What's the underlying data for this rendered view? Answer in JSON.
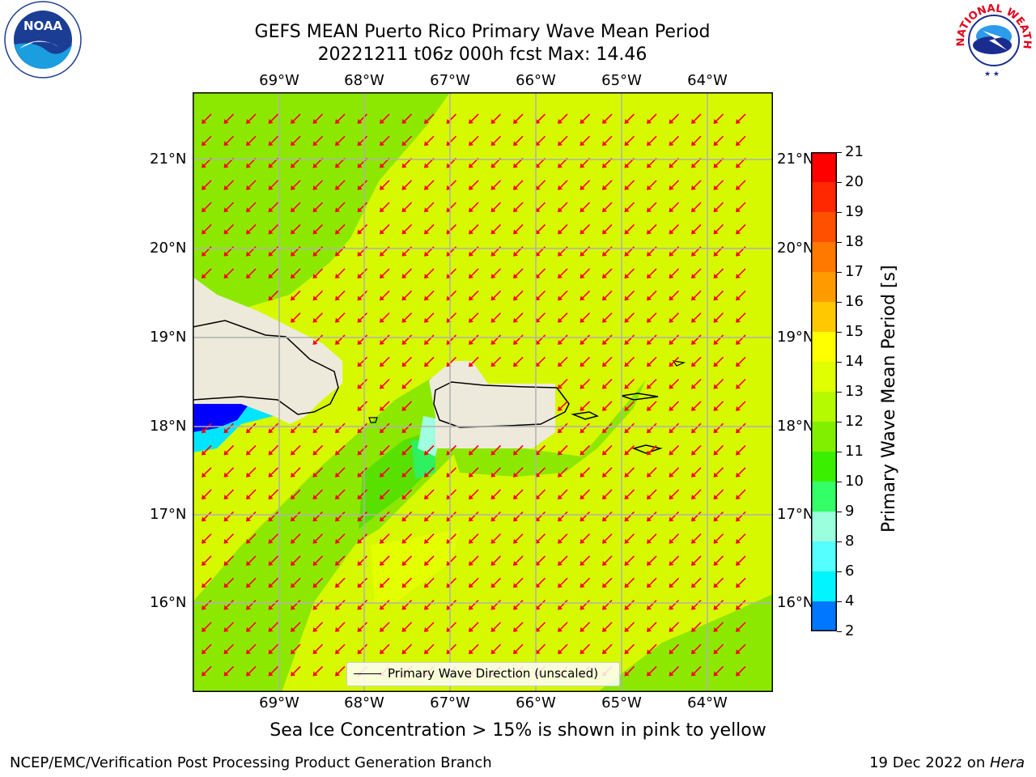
{
  "header": {
    "title_line1": "GEFS MEAN Puerto Rico Primary Wave Mean Period",
    "title_line2": "20221211 t06z 000h fcst   Max: 14.46"
  },
  "logos": {
    "left": "NOAA",
    "left_ring": "NATIONAL OCEANIC AND ATMOSPHERIC ADMINISTRATION · U.S. DEPARTMENT OF COMMERCE",
    "right_ring": "NATIONAL WEATHER SERVICE"
  },
  "map": {
    "lon_labels": [
      "69°W",
      "68°W",
      "67°W",
      "66°W",
      "65°W",
      "64°W"
    ],
    "lat_labels": [
      "21°N",
      "20°N",
      "19°N",
      "18°N",
      "17°N",
      "16°N"
    ],
    "legend_label": "Primary Wave Direction (unscaled)",
    "arrow_color": "#ff0000",
    "land_color": "#eeeadb",
    "ocean_base_color": "#d7f900"
  },
  "colorbar": {
    "label": "Primary Wave Mean Period [s]",
    "ticks": [
      "21",
      "20",
      "19",
      "18",
      "17",
      "16",
      "15",
      "14",
      "13",
      "12",
      "11",
      "10",
      "9",
      "8",
      "6",
      "4",
      "2"
    ],
    "colors_top_to_bottom": [
      "#ff0000",
      "#ff2800",
      "#ff5000",
      "#ff7800",
      "#ff9b00",
      "#ffc800",
      "#ffff00",
      "#e0ff00",
      "#b5fa00",
      "#80f000",
      "#3af000",
      "#33ff66",
      "#99ffdd",
      "#55ffff",
      "#00f5ff",
      "#0077ff",
      "#0000ff"
    ]
  },
  "caption": "Sea Ice Concentration > 15% is shown in pink to yellow",
  "footer": {
    "left": "NCEP/EMC/Verification Post Processing Product Generation Branch",
    "right_prefix": "19 Dec 2022 on ",
    "right_italic": "Hera"
  }
}
